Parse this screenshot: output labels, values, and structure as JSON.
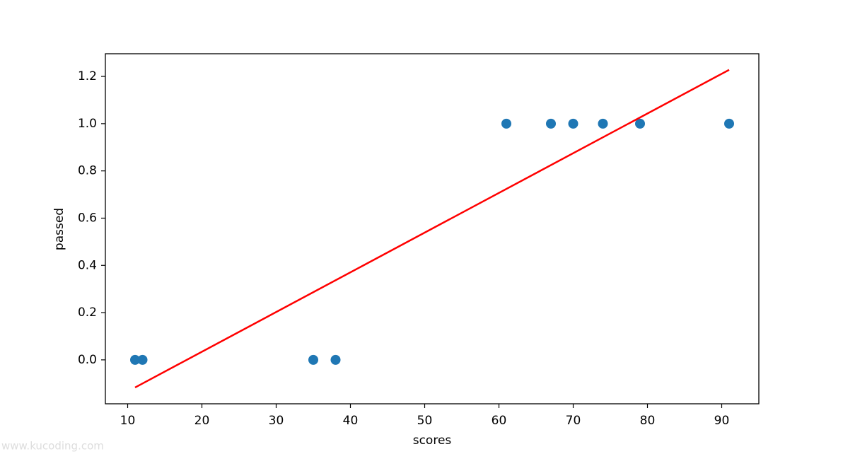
{
  "chart_data": {
    "type": "scatter",
    "xlabel": "scores",
    "ylabel": "passed",
    "xlim": [
      7,
      95
    ],
    "ylim": [
      -0.186,
      1.296
    ],
    "xticks": [
      10,
      20,
      30,
      40,
      50,
      60,
      70,
      80,
      90
    ],
    "yticks": [
      {
        "value": 0,
        "label": "0.0"
      },
      0.2,
      0.4,
      0.6,
      0.8,
      {
        "value": 1,
        "label": "1.0"
      },
      1.2
    ],
    "series": [
      {
        "type": "scatter",
        "color": "#1f77b4",
        "x": [
          11,
          12,
          35,
          38,
          61,
          67,
          70,
          74,
          79,
          91
        ],
        "values": [
          0,
          0,
          0,
          0,
          1,
          1,
          1,
          1,
          1,
          1
        ]
      },
      {
        "type": "line",
        "color": "#ff0000",
        "x": [
          11,
          91
        ],
        "values": [
          -0.117,
          1.228
        ]
      }
    ],
    "watermark": "www.kucoding.com"
  }
}
